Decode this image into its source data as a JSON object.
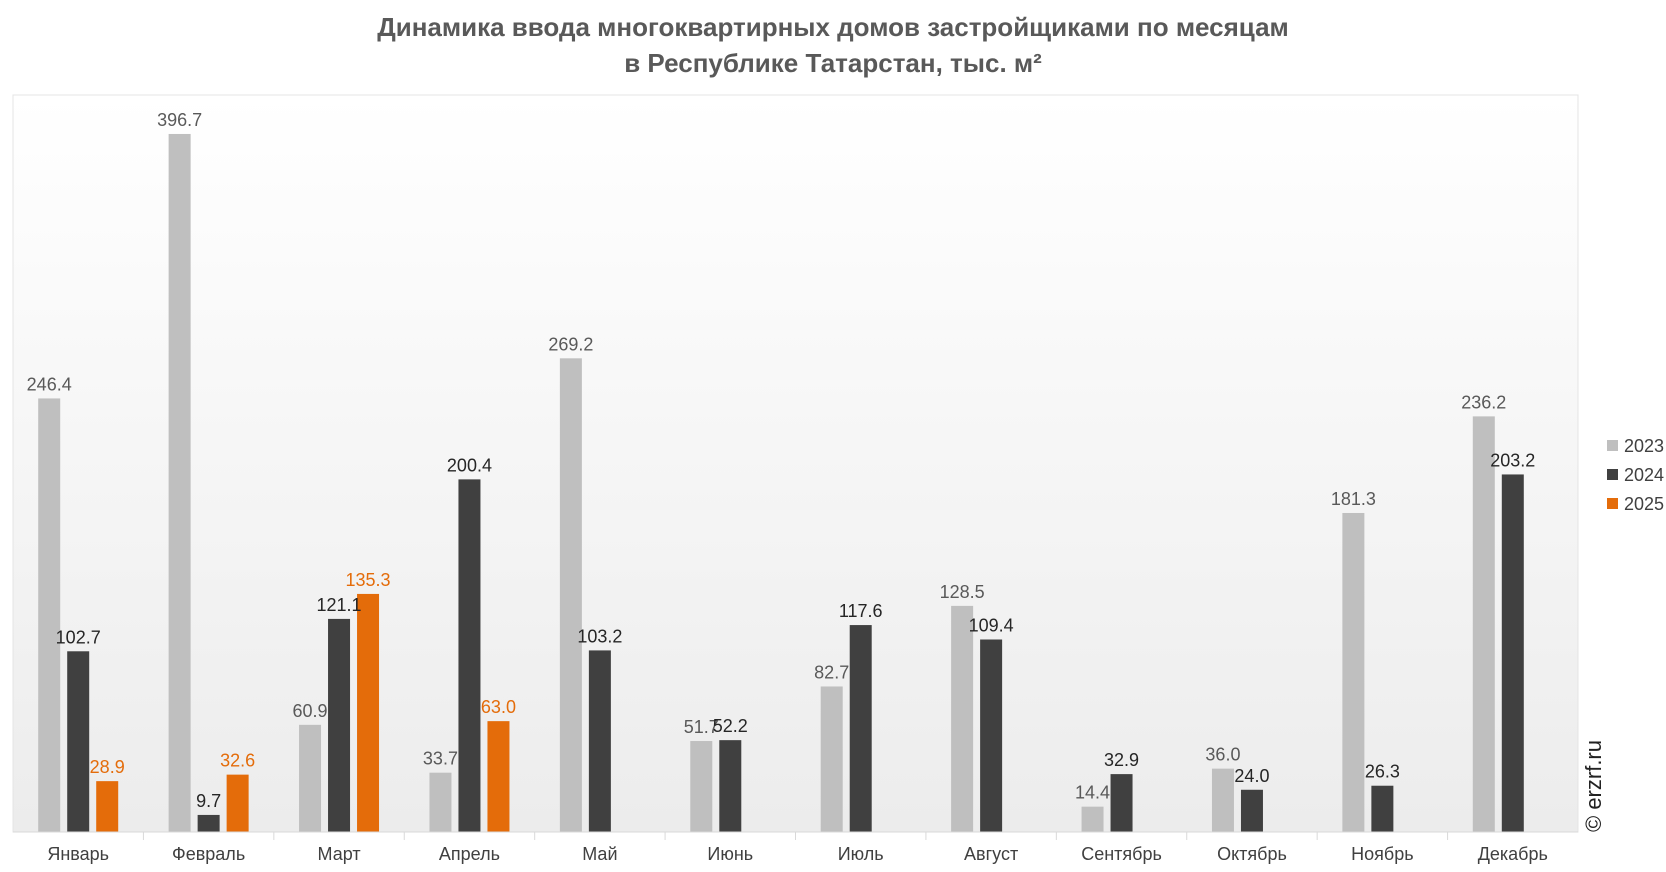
{
  "chart_data": {
    "type": "bar",
    "title": "Динамика ввода многоквартирных домов застройщиками по месяцам",
    "subtitle": "в Республике Татарстан, тыс. м²",
    "categories": [
      "Январь",
      "Февраль",
      "Март",
      "Апрель",
      "Май",
      "Июнь",
      "Июль",
      "Август",
      "Сентябрь",
      "Октябрь",
      "Ноябрь",
      "Декабрь"
    ],
    "series": [
      {
        "name": "2023",
        "color": "#bfbfbf",
        "label_color": "#595959",
        "values": [
          246.4,
          396.7,
          60.9,
          33.7,
          269.2,
          51.7,
          82.7,
          128.5,
          14.4,
          36.0,
          181.3,
          236.2
        ],
        "labels": [
          "246.4",
          "396.7",
          "60.9",
          "33.7",
          "269.2",
          "51.7",
          "82.7",
          "128.5",
          "14.4",
          "36.0",
          "181.3",
          "236.2"
        ]
      },
      {
        "name": "2024",
        "color": "#404040",
        "label_color": "#262626",
        "values": [
          102.7,
          9.7,
          121.1,
          200.4,
          103.2,
          52.2,
          117.6,
          109.4,
          32.9,
          24.0,
          26.3,
          203.2
        ],
        "labels": [
          "102.7",
          "9.7",
          "121.1",
          "200.4",
          "103.2",
          "52.2",
          "117.6",
          "109.4",
          "32.9",
          "24.0",
          "26.3",
          "203.2"
        ]
      },
      {
        "name": "2025",
        "color": "#e46c0a",
        "label_color": "#e46c0a",
        "values": [
          28.9,
          32.6,
          135.3,
          63.0,
          null,
          null,
          null,
          null,
          null,
          null,
          null,
          null
        ],
        "labels": [
          "28.9",
          "32.6",
          "135.3",
          "63.0",
          "",
          "",
          "",
          "",
          "",
          "",
          "",
          ""
        ]
      }
    ],
    "ylim": [
      0,
      450
    ],
    "grid": false,
    "legend_position": "right",
    "watermark": "© erzrf.ru"
  }
}
